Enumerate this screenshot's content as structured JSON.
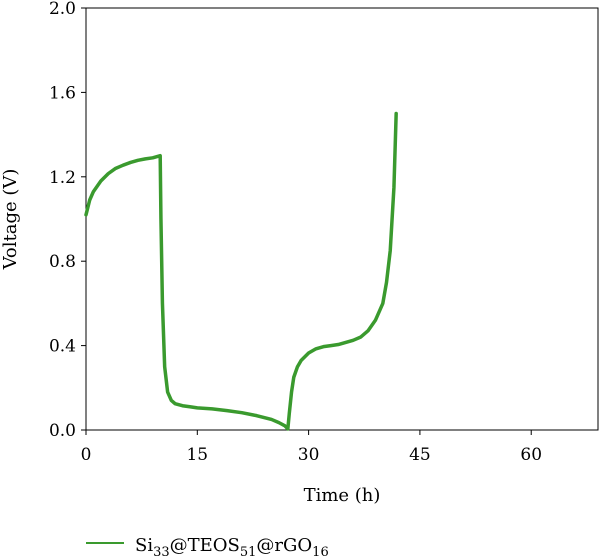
{
  "chart_data": {
    "type": "line",
    "xlabel": "Time (h)",
    "ylabel": "Voltage (V)",
    "xlim": [
      0,
      69
    ],
    "ylim": [
      0,
      2.0
    ],
    "xticks": [
      0,
      15,
      30,
      45,
      60
    ],
    "yticks": [
      0.0,
      0.4,
      0.8,
      1.2,
      1.6,
      2.0
    ],
    "xtick_labels": [
      "0",
      "15",
      "30",
      "45",
      "60"
    ],
    "ytick_labels": [
      "0.0",
      "0.4",
      "0.8",
      "1.2",
      "1.6",
      "2.0"
    ],
    "grid": false,
    "legend_position": "bottom-left",
    "series": [
      {
        "name": "Si33@TEOS51@rGO16",
        "legend_label": {
          "base": "Si",
          "sub1": "33",
          "mid1": "@TEOS",
          "sub2": "51",
          "mid2": "@rGO",
          "sub3": "16"
        },
        "color": "#3a9a2e",
        "x": [
          0,
          0.5,
          1,
          2,
          3,
          4,
          5,
          6,
          7,
          8,
          9,
          10,
          10.1,
          10.3,
          10.6,
          11,
          11.5,
          12,
          13,
          14,
          15,
          17,
          19,
          21,
          23,
          25,
          26,
          26.8,
          27.2,
          27.4,
          27.7,
          28,
          28.5,
          29,
          30,
          31,
          32,
          33,
          34,
          35,
          36,
          37,
          38,
          39,
          40,
          40.5,
          41,
          41.5,
          41.8
        ],
        "y": [
          1.02,
          1.09,
          1.13,
          1.18,
          1.215,
          1.24,
          1.255,
          1.268,
          1.278,
          1.285,
          1.29,
          1.3,
          1.0,
          0.6,
          0.3,
          0.18,
          0.14,
          0.125,
          0.115,
          0.11,
          0.105,
          0.1,
          0.092,
          0.082,
          0.068,
          0.05,
          0.035,
          0.02,
          0.005,
          0.08,
          0.18,
          0.25,
          0.3,
          0.33,
          0.365,
          0.385,
          0.395,
          0.4,
          0.405,
          0.415,
          0.425,
          0.44,
          0.47,
          0.52,
          0.6,
          0.7,
          0.85,
          1.15,
          1.5
        ]
      }
    ]
  }
}
